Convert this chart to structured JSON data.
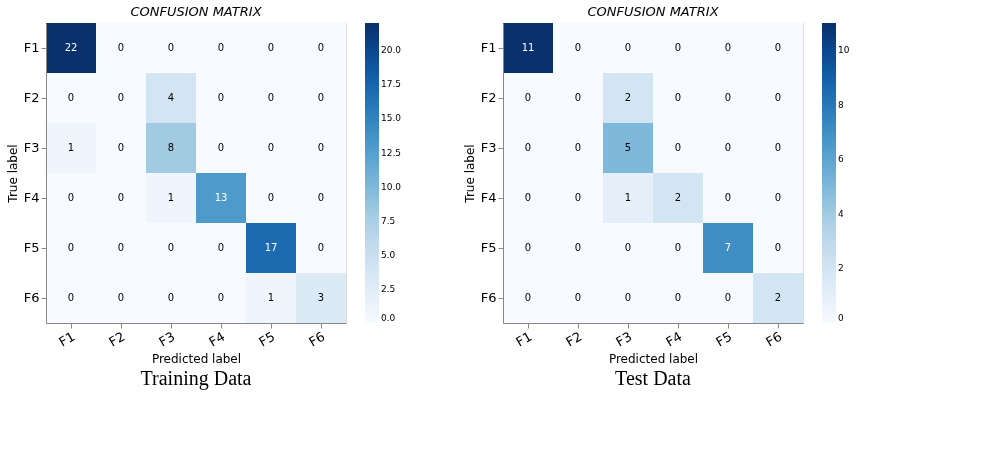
{
  "chart_data": [
    {
      "type": "heatmap",
      "title": "CONFUSION MATRIX",
      "xlabel": "Predicted label",
      "ylabel": "True label",
      "categories": [
        "F1",
        "F2",
        "F3",
        "F4",
        "F5",
        "F6"
      ],
      "y_categories": [
        "F1",
        "F2",
        "F3",
        "F4",
        "F5",
        "F6"
      ],
      "cells": [
        [
          22,
          0,
          0,
          0,
          0,
          0
        ],
        [
          0,
          0,
          4,
          0,
          0,
          0
        ],
        [
          1,
          0,
          8,
          0,
          0,
          0
        ],
        [
          0,
          0,
          1,
          13,
          0,
          0
        ],
        [
          0,
          0,
          0,
          0,
          17,
          0
        ],
        [
          0,
          0,
          0,
          0,
          1,
          3
        ]
      ],
      "clim": [
        0,
        22
      ],
      "cticks": [
        {
          "value": 0,
          "label": "0.0"
        },
        2.5,
        {
          "value": 5,
          "label": "5.0"
        },
        7.5,
        {
          "value": 10,
          "label": "10.0"
        },
        12.5,
        {
          "value": 15,
          "label": "15.0"
        },
        17.5,
        {
          "value": 20,
          "label": "20.0"
        }
      ],
      "data_labels": true,
      "annotations": [
        "Training Data"
      ]
    },
    {
      "type": "heatmap",
      "title": "CONFUSION MATRIX",
      "xlabel": "Predicted label",
      "ylabel": "True label",
      "categories": [
        "F1",
        "F2",
        "F3",
        "F4",
        "F5",
        "F6"
      ],
      "y_categories": [
        "F1",
        "F2",
        "F3",
        "F4",
        "F5",
        "F6"
      ],
      "cells": [
        [
          11,
          0,
          0,
          0,
          0,
          0
        ],
        [
          0,
          0,
          2,
          0,
          0,
          0
        ],
        [
          0,
          0,
          5,
          0,
          0,
          0
        ],
        [
          0,
          0,
          1,
          2,
          0,
          0
        ],
        [
          0,
          0,
          0,
          0,
          7,
          0
        ],
        [
          0,
          0,
          0,
          0,
          0,
          2
        ]
      ],
      "clim": [
        0,
        11
      ],
      "cticks": [
        0,
        2,
        4,
        6,
        8,
        10
      ],
      "data_labels": true,
      "annotations": [
        "Test Data"
      ]
    }
  ]
}
